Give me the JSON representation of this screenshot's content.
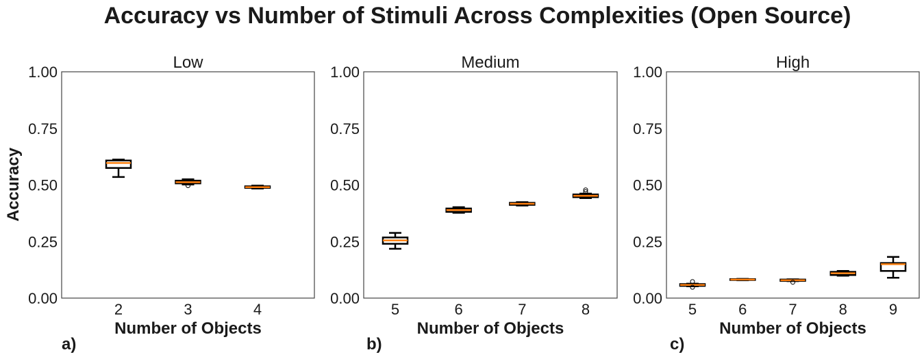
{
  "chart_data": {
    "title": "Accuracy vs Number of Stimuli Across Complexities (Open Source)",
    "type": "boxplot",
    "ylabel": "Accuracy",
    "ylim": [
      0,
      1
    ],
    "yticks": [
      "0.00",
      "0.25",
      "0.50",
      "0.75",
      "1.00"
    ],
    "grid": false,
    "colors": {
      "box": "#000000",
      "median": "#ff7f0e",
      "frame": "#444444"
    },
    "panels": [
      {
        "title": "Low",
        "label": "a)",
        "xlabel": "Number of Objects",
        "boxes": [
          {
            "x": "2",
            "whislo": 0.535,
            "q1": 0.575,
            "med": 0.597,
            "q3": 0.608,
            "whishi": 0.612,
            "fliers": []
          },
          {
            "x": "3",
            "whislo": 0.502,
            "q1": 0.507,
            "med": 0.512,
            "q3": 0.519,
            "whishi": 0.525,
            "fliers": [
              0.497
            ]
          },
          {
            "x": "4",
            "whislo": 0.484,
            "q1": 0.487,
            "med": 0.49,
            "q3": 0.494,
            "whishi": 0.497,
            "fliers": []
          }
        ]
      },
      {
        "title": "Medium",
        "label": "b)",
        "xlabel": "Number of Objects",
        "boxes": [
          {
            "x": "5",
            "whislo": 0.218,
            "q1": 0.24,
            "med": 0.255,
            "q3": 0.268,
            "whishi": 0.288,
            "fliers": []
          },
          {
            "x": "6",
            "whislo": 0.377,
            "q1": 0.381,
            "med": 0.389,
            "q3": 0.396,
            "whishi": 0.402,
            "fliers": []
          },
          {
            "x": "7",
            "whislo": 0.409,
            "q1": 0.412,
            "med": 0.417,
            "q3": 0.421,
            "whishi": 0.424,
            "fliers": []
          },
          {
            "x": "8",
            "whislo": 0.442,
            "q1": 0.446,
            "med": 0.452,
            "q3": 0.458,
            "whishi": 0.462,
            "fliers": [
              0.47,
              0.478
            ]
          }
        ]
      },
      {
        "title": "High",
        "label": "c)",
        "xlabel": "Number of Objects",
        "boxes": [
          {
            "x": "5",
            "whislo": 0.052,
            "q1": 0.054,
            "med": 0.058,
            "q3": 0.062,
            "whishi": 0.064,
            "fliers": [
              0.048,
              0.073
            ]
          },
          {
            "x": "6",
            "whislo": 0.079,
            "q1": 0.08,
            "med": 0.082,
            "q3": 0.084,
            "whishi": 0.085,
            "fliers": []
          },
          {
            "x": "7",
            "whislo": 0.075,
            "q1": 0.076,
            "med": 0.079,
            "q3": 0.082,
            "whishi": 0.083,
            "fliers": [
              0.07
            ]
          },
          {
            "x": "8",
            "whislo": 0.099,
            "q1": 0.102,
            "med": 0.11,
            "q3": 0.116,
            "whishi": 0.12,
            "fliers": []
          },
          {
            "x": "9",
            "whislo": 0.09,
            "q1": 0.12,
            "med": 0.15,
            "q3": 0.155,
            "whishi": 0.182,
            "fliers": []
          }
        ]
      }
    ]
  }
}
